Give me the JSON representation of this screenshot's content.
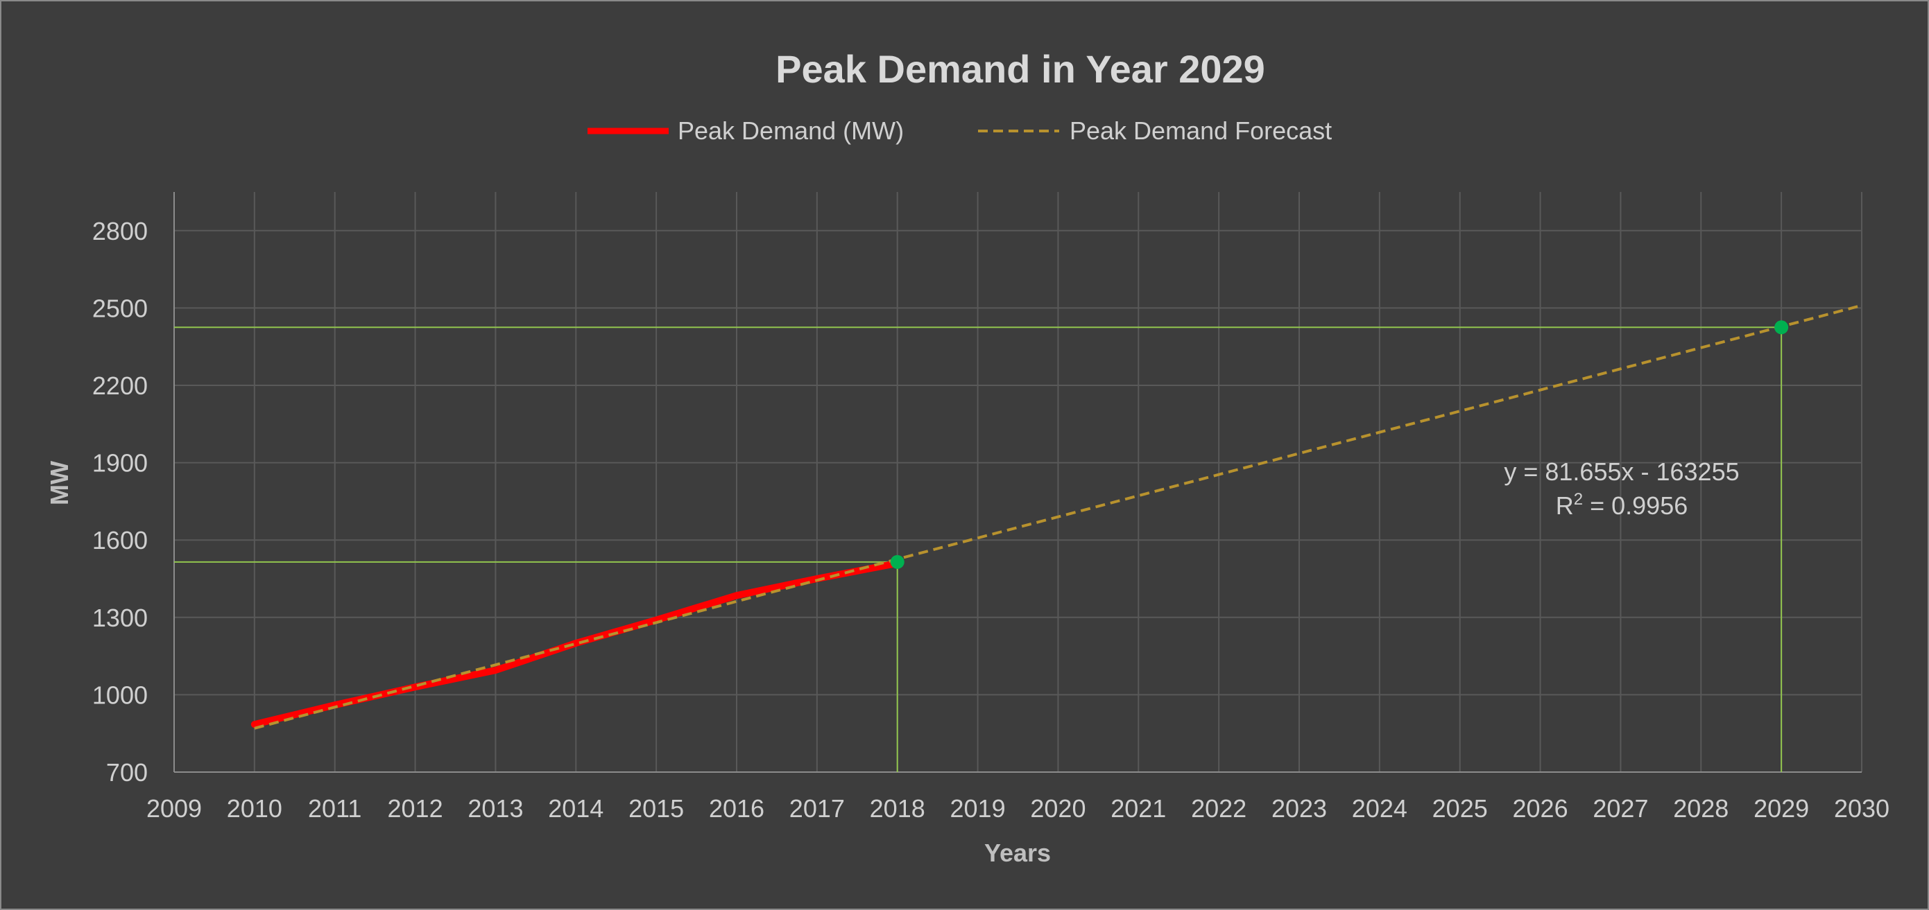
{
  "chart_data": {
    "type": "line",
    "title": "Peak Demand in Year 2029",
    "xlabel": "Years",
    "ylabel": "MW",
    "xlim": [
      2009,
      2030
    ],
    "ylim": [
      700,
      2950
    ],
    "x_ticks": [
      2009,
      2010,
      2011,
      2012,
      2013,
      2014,
      2015,
      2016,
      2017,
      2018,
      2019,
      2020,
      2021,
      2022,
      2023,
      2024,
      2025,
      2026,
      2027,
      2028,
      2029,
      2030
    ],
    "y_ticks": [
      700,
      1000,
      1300,
      1600,
      1900,
      2200,
      2500,
      2800
    ],
    "grid": true,
    "legend_position": "top",
    "series": [
      {
        "name": "Peak Demand (MW)",
        "color": "#ff0000",
        "style": "solid",
        "x": [
          2010,
          2011,
          2012,
          2013,
          2014,
          2015,
          2016,
          2017,
          2018
        ],
        "y": [
          885,
          960,
          1030,
          1095,
          1200,
          1290,
          1385,
          1450,
          1510
        ]
      },
      {
        "name": "Peak Demand Forecast",
        "color": "#b8922e",
        "style": "dashed",
        "x": [
          2010,
          2030
        ],
        "y": [
          870,
          2510
        ]
      }
    ],
    "highlight_points": [
      {
        "x": 2018,
        "y": 1515,
        "color": "#00b050"
      },
      {
        "x": 2029,
        "y": 2425,
        "color": "#00b050"
      }
    ],
    "reference_line_color": "#92c54e",
    "annotation": {
      "equation": "y = 81.655x - 163255",
      "r_squared_label": "R",
      "r_squared_exponent": "2",
      "r_squared_value": " = 0.9956"
    }
  }
}
